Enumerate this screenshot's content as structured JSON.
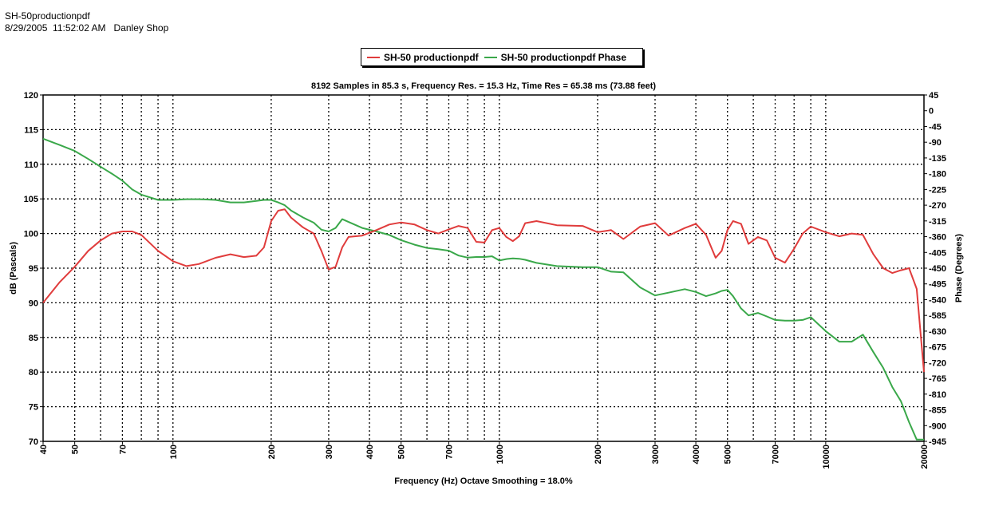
{
  "header": {
    "title": "SH-50productionpdf",
    "meta": "8/29/2005  11:52:02 AM   Danley Shop"
  },
  "chart_data": {
    "type": "line",
    "title": "8192 Samples in 85.3  s, Frequency Res. = 15.3 Hz, Time Res = 65.38 ms (73.88 feet)",
    "xlabel": "Frequency (Hz) Octave Smoothing = 18.0%",
    "ylabel": "dB (Pascals)",
    "y2label": "Phase (Degrees)",
    "xscale": "log",
    "xlim": [
      40,
      20000
    ],
    "ylim": [
      70,
      120
    ],
    "y2lim": [
      -945,
      45
    ],
    "grid": true,
    "legend_position": "top-center",
    "x_ticks": [
      40,
      50,
      70,
      100,
      200,
      300,
      400,
      500,
      700,
      1000,
      2000,
      3000,
      4000,
      5000,
      7000,
      10000,
      20000
    ],
    "x_tick_labels": [
      "40",
      "50",
      "70",
      "100",
      "200",
      "300",
      "400",
      "500",
      "700",
      "1000",
      "2000",
      "3000",
      "4000",
      "5000",
      "7000",
      "10000",
      "20000"
    ],
    "x_grid": [
      50,
      60,
      70,
      80,
      90,
      100,
      200,
      300,
      400,
      500,
      600,
      700,
      800,
      900,
      1000,
      2000,
      3000,
      4000,
      5000,
      6000,
      7000,
      8000,
      9000,
      10000
    ],
    "y_ticks": [
      70,
      75,
      80,
      85,
      90,
      95,
      100,
      105,
      110,
      115,
      120
    ],
    "y2_ticks": [
      45,
      0,
      -45,
      -90,
      -135,
      -180,
      -225,
      -270,
      -315,
      -360,
      -405,
      -450,
      -495,
      -540,
      -585,
      -630,
      -675,
      -720,
      -765,
      -810,
      -855,
      -900,
      -945
    ],
    "series": [
      {
        "name": "SH-50 productionpdf",
        "color": "#e03c3c",
        "axis": "left",
        "x": [
          40,
          45,
          50,
          55,
          60,
          65,
          70,
          75,
          80,
          90,
          100,
          110,
          120,
          135,
          150,
          165,
          180,
          190,
          200,
          210,
          220,
          230,
          250,
          270,
          285,
          300,
          315,
          330,
          345,
          380,
          420,
          460,
          500,
          550,
          600,
          650,
          700,
          750,
          800,
          850,
          900,
          950,
          1000,
          1050,
          1100,
          1150,
          1200,
          1300,
          1500,
          1800,
          2000,
          2200,
          2400,
          2700,
          3000,
          3300,
          3700,
          4000,
          4300,
          4600,
          4800,
          5000,
          5200,
          5500,
          5800,
          6200,
          6600,
          7000,
          7500,
          8000,
          8500,
          9000,
          10000,
          11000,
          12000,
          13000,
          14000,
          15000,
          16000,
          17000,
          18000,
          19000,
          20000
        ],
        "values": [
          90.0,
          93.0,
          95.2,
          97.5,
          99.0,
          100.0,
          100.3,
          100.3,
          99.8,
          97.5,
          96.0,
          95.3,
          95.6,
          96.5,
          97.0,
          96.6,
          96.8,
          98.0,
          101.8,
          103.3,
          103.5,
          102.3,
          100.9,
          100.0,
          97.5,
          94.8,
          95.2,
          98.0,
          99.5,
          99.7,
          100.5,
          101.3,
          101.6,
          101.3,
          100.5,
          100.0,
          100.6,
          101.1,
          100.8,
          98.8,
          98.7,
          100.5,
          100.8,
          99.5,
          98.9,
          99.6,
          101.5,
          101.8,
          101.2,
          101.1,
          100.2,
          100.5,
          99.2,
          101.0,
          101.5,
          99.7,
          100.8,
          101.4,
          99.8,
          96.5,
          97.5,
          100.5,
          101.8,
          101.4,
          98.5,
          99.5,
          99.0,
          96.5,
          95.8,
          97.8,
          100.0,
          101.0,
          100.2,
          99.6,
          100.0,
          99.8,
          97.0,
          95.0,
          94.3,
          94.7,
          95.0,
          92.0,
          80.0
        ]
      },
      {
        "name": "SH-50 productionpdf Phase",
        "color": "#3aa84a",
        "axis": "right",
        "x": [
          40,
          45,
          50,
          55,
          60,
          65,
          70,
          75,
          80,
          90,
          100,
          110,
          120,
          135,
          150,
          165,
          180,
          190,
          200,
          210,
          220,
          230,
          250,
          270,
          285,
          300,
          315,
          330,
          345,
          380,
          420,
          460,
          500,
          550,
          600,
          650,
          700,
          750,
          800,
          850,
          900,
          950,
          1000,
          1050,
          1100,
          1150,
          1200,
          1300,
          1500,
          1800,
          2000,
          2200,
          2400,
          2700,
          3000,
          3300,
          3700,
          4000,
          4300,
          4600,
          4800,
          5000,
          5200,
          5500,
          5800,
          6200,
          6600,
          7000,
          7500,
          8000,
          8500,
          9000,
          10000,
          11000,
          12000,
          13000,
          14000,
          15000,
          16000,
          17000,
          18000,
          19000,
          20000
        ],
        "values": [
          -80,
          -98,
          -115,
          -138,
          -160,
          -180,
          -200,
          -225,
          -240,
          -255,
          -255,
          -253,
          -253,
          -255,
          -262,
          -262,
          -258,
          -255,
          -255,
          -262,
          -270,
          -285,
          -305,
          -320,
          -340,
          -345,
          -335,
          -310,
          -318,
          -335,
          -345,
          -355,
          -370,
          -383,
          -392,
          -396,
          -400,
          -414,
          -420,
          -418,
          -418,
          -416,
          -428,
          -424,
          -422,
          -423,
          -426,
          -435,
          -444,
          -447,
          -447,
          -460,
          -462,
          -505,
          -528,
          -520,
          -510,
          -518,
          -530,
          -522,
          -515,
          -512,
          -530,
          -565,
          -585,
          -578,
          -588,
          -598,
          -600,
          -600,
          -598,
          -590,
          -630,
          -660,
          -660,
          -640,
          -690,
          -735,
          -790,
          -830,
          -890,
          -940,
          -940
        ]
      }
    ]
  }
}
